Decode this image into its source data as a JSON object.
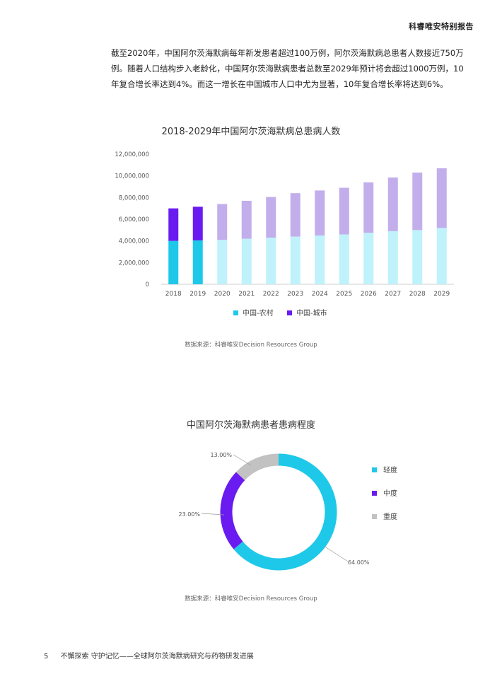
{
  "header": {
    "report_title": "科睿唯安特别报告"
  },
  "intro_text": "截至2020年，中国阿尔茨海默病每年新发患者超过100万例，阿尔茨海默病总患者人数接近750万例。随着人口结构步入老龄化，中国阿尔茨海默病患者总数至2029年预计将会超过1000万例，10年复合增长率达到4%。而这一增长在中国城市人口中尤为显著，10年复合增长率将达到6%。",
  "colors": {
    "rural": "#1ec8e8",
    "urban": "#6a1bf0",
    "projected_rural": "#bff2fb",
    "projected_urban": "#c1aeea",
    "severe": "#c2c2c2"
  },
  "chart_data": [
    {
      "type": "bar",
      "stacked": true,
      "title": "2018-2029年中国阿尔茨海默病总患病人数",
      "categories": [
        "2018",
        "2019",
        "2020",
        "2021",
        "2022",
        "2023",
        "2024",
        "2025",
        "2026",
        "2027",
        "2028",
        "2029"
      ],
      "series": [
        {
          "name": "中国-农村",
          "values": [
            4000000,
            4050000,
            4100000,
            4200000,
            4300000,
            4400000,
            4500000,
            4600000,
            4750000,
            4900000,
            5000000,
            5200000
          ]
        },
        {
          "name": "中国-城市",
          "values": [
            3000000,
            3100000,
            3300000,
            3500000,
            3750000,
            4000000,
            4150000,
            4300000,
            4650000,
            4950000,
            5300000,
            5500000
          ]
        }
      ],
      "ylim": [
        0,
        12000000
      ],
      "y_ticks": [
        "0",
        "2,000,000",
        "4,000,000",
        "6,000,000",
        "8,000,000",
        "10,000,000",
        "12,000,000"
      ],
      "grid": false,
      "legend_position": "bottom",
      "source": "数据来源：科睿唯安Decision Resources Group"
    },
    {
      "type": "pie",
      "donut": true,
      "title": "中国阿尔茨海默病患者患病程度",
      "labels": [
        "轻度",
        "中度",
        "重度"
      ],
      "values": [
        64.0,
        23.0,
        13.0
      ],
      "value_labels": [
        "64.00%",
        "23.00%",
        "13.00%"
      ],
      "legend_position": "right",
      "source": "数据来源：科睿唯安Decision Resources Group"
    }
  ],
  "footer": {
    "page_number": "5",
    "text": "不懈探索 守护记忆——全球阿尔茨海默病研究与药物研发进展"
  }
}
